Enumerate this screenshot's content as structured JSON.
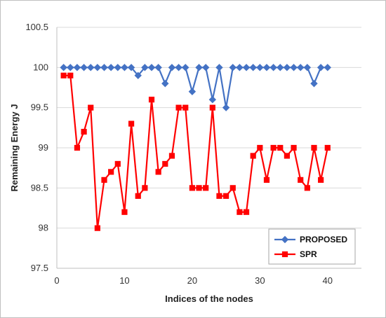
{
  "chart_data": {
    "type": "line",
    "title": "",
    "xlabel": "Indices of the nodes",
    "ylabel": "Remaining Energy J",
    "xlim": [
      0,
      45
    ],
    "ylim": [
      97.5,
      100.5
    ],
    "xticks": [
      0,
      10,
      20,
      30,
      40
    ],
    "yticks": [
      97.5,
      98,
      98.5,
      99,
      99.5,
      100,
      100.5
    ],
    "grid": "horizontal",
    "legend_position": "bottom-right",
    "x": [
      1,
      2,
      3,
      4,
      5,
      6,
      7,
      8,
      9,
      10,
      11,
      12,
      13,
      14,
      15,
      16,
      17,
      18,
      19,
      20,
      21,
      22,
      23,
      24,
      25,
      26,
      27,
      28,
      29,
      30,
      31,
      32,
      33,
      34,
      35,
      36,
      37,
      38,
      39,
      40
    ],
    "series": [
      {
        "name": "PROPOSED",
        "color": "#4472C4",
        "marker": "diamond",
        "values": [
          100,
          100,
          100,
          100,
          100,
          100,
          100,
          100,
          100,
          100,
          100,
          99.9,
          100,
          100,
          100,
          99.8,
          100,
          100,
          100,
          99.7,
          100,
          100,
          99.6,
          100,
          99.5,
          100,
          100,
          100,
          100,
          100,
          100,
          100,
          100,
          100,
          100,
          100,
          100,
          99.8,
          100,
          100
        ]
      },
      {
        "name": "SPR",
        "color": "#FF0000",
        "marker": "square",
        "values": [
          99.9,
          99.9,
          99.0,
          99.2,
          99.5,
          98.0,
          98.6,
          98.7,
          98.8,
          98.2,
          99.3,
          98.4,
          98.5,
          99.6,
          98.7,
          98.8,
          98.9,
          99.5,
          99.5,
          98.5,
          98.5,
          98.5,
          99.5,
          98.4,
          98.4,
          98.5,
          98.2,
          98.2,
          98.9,
          99.0,
          98.6,
          99.0,
          99.0,
          98.9,
          99.0,
          98.6,
          98.5,
          99.0,
          98.6,
          99.0
        ]
      }
    ]
  }
}
